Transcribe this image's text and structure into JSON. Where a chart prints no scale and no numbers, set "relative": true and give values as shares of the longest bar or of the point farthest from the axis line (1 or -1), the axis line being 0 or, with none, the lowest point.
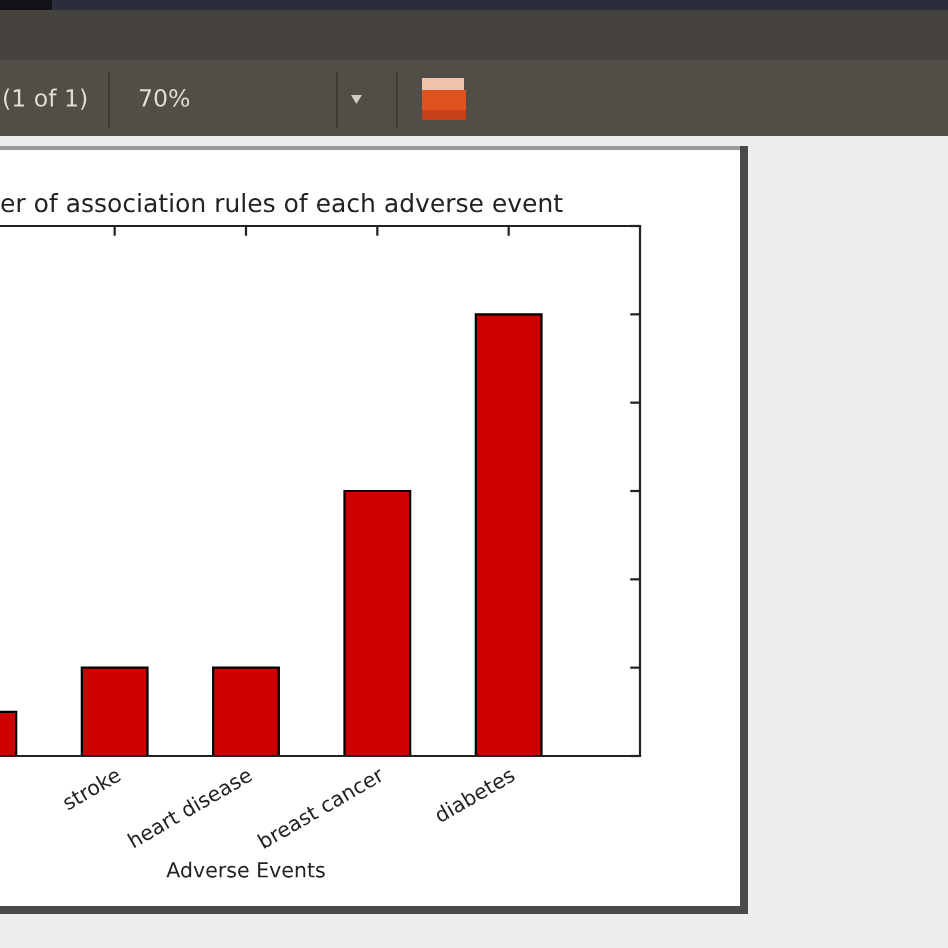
{
  "chart_data": {
    "type": "bar",
    "title": "er of association rules of each adverse event",
    "xlabel": "Adverse Events",
    "categories": [
      null,
      "stroke",
      "heart disease",
      "breast cancer",
      "diabetes"
    ],
    "values": [
      0.1,
      0.2,
      0.2,
      0.6,
      1
    ],
    "color": "#cc0000",
    "relative": true,
    "annotations": [
      "(1 of 1)",
      "70%"
    ]
  }
}
